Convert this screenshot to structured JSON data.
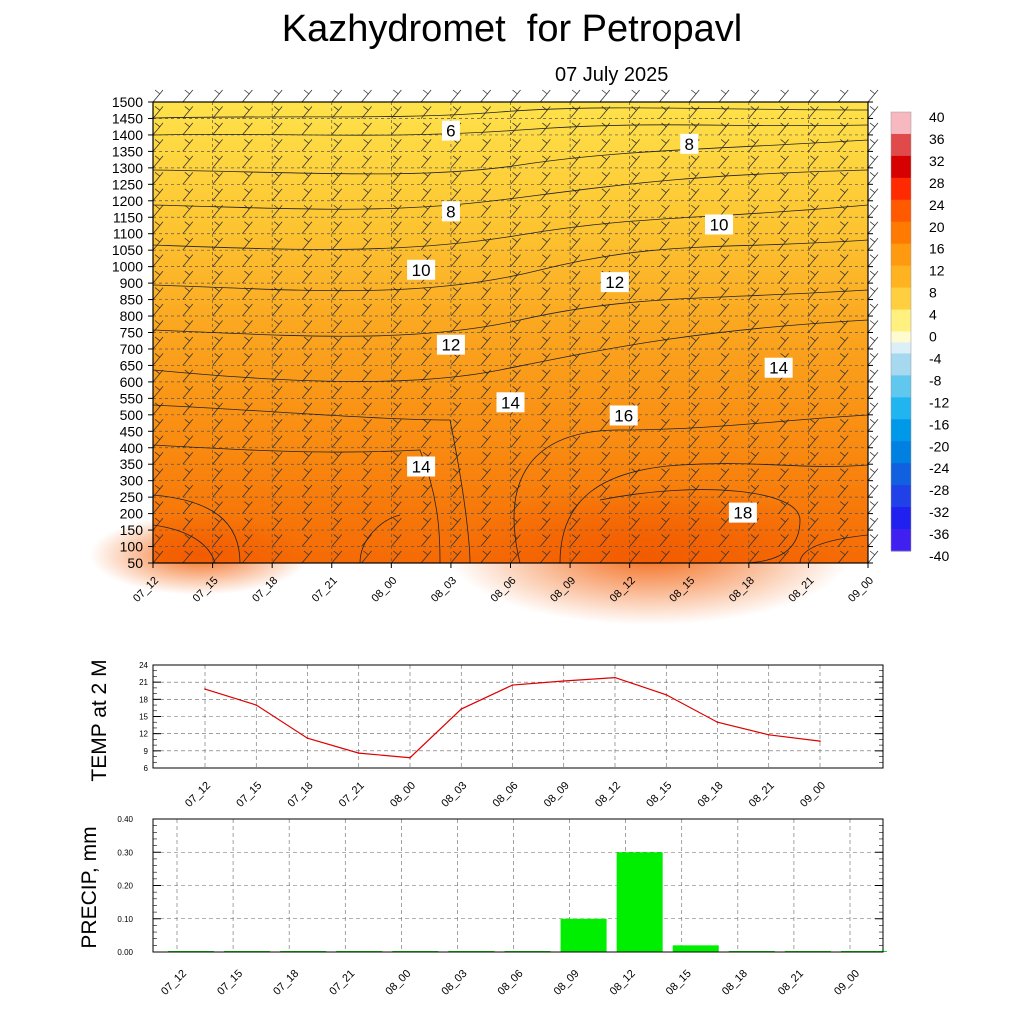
{
  "title": "Kazhydromet  for Petropavl",
  "subtitle": "07 July 2025",
  "cross_section": {
    "y_ticks": [
      "50",
      "100",
      "150",
      "200",
      "250",
      "300",
      "350",
      "400",
      "450",
      "500",
      "550",
      "600",
      "650",
      "700",
      "750",
      "800",
      "850",
      "900",
      "1000",
      "1050",
      "1100",
      "1150",
      "1200",
      "1250",
      "1300",
      "1350",
      "1400",
      "1450",
      "1500"
    ],
    "x_ticks": [
      "07_12",
      "07_15",
      "07_18",
      "07_21",
      "08_00",
      "08_03",
      "08_06",
      "08_09",
      "08_12",
      "08_15",
      "08_18",
      "08_21",
      "09_00"
    ],
    "contour_labels": [
      {
        "text": "6",
        "x_index": 5,
        "level_m": 1410
      },
      {
        "text": "8",
        "x_index": 5,
        "level_m": 1165
      },
      {
        "text": "10",
        "x_index": 4.5,
        "level_m": 975
      },
      {
        "text": "12",
        "x_index": 5,
        "level_m": 710
      },
      {
        "text": "14",
        "x_index": 6,
        "level_m": 535
      },
      {
        "text": "14",
        "x_index": 4.5,
        "level_m": 340
      },
      {
        "text": "8",
        "x_index": 9,
        "level_m": 1370
      },
      {
        "text": "10",
        "x_index": 9.5,
        "level_m": 1125
      },
      {
        "text": "12",
        "x_index": 7.75,
        "level_m": 900
      },
      {
        "text": "16",
        "x_index": 7.9,
        "level_m": 495
      },
      {
        "text": "14",
        "x_index": 10.5,
        "level_m": 640
      },
      {
        "text": "18",
        "x_index": 9.9,
        "level_m": 200
      }
    ],
    "colorbar": {
      "labels": [
        "40",
        "36",
        "32",
        "28",
        "24",
        "20",
        "16",
        "12",
        "8",
        "4",
        "0",
        "-4",
        "-8",
        "-12",
        "-16",
        "-20",
        "-24",
        "-28",
        "-32",
        "-36",
        "-40"
      ]
    }
  },
  "chart_data": [
    {
      "type": "line",
      "ylabel": "TEMP at 2 M",
      "categories": [
        "07_12",
        "07_15",
        "07_18",
        "07_21",
        "08_00",
        "08_03",
        "08_06",
        "08_09",
        "08_12",
        "08_15",
        "08_18",
        "08_21",
        "09_00"
      ],
      "series": [
        {
          "values": [
            19.8,
            17.0,
            11.2,
            8.6,
            7.8,
            16.3,
            20.5,
            21.2,
            21.8,
            18.8,
            14.0,
            11.8,
            10.7
          ]
        }
      ],
      "y_ticks": [
        "24",
        "21",
        "18",
        "15",
        "12",
        "9",
        "6"
      ],
      "ylim": [
        6,
        24
      ],
      "color": "#dd0000"
    },
    {
      "type": "bar",
      "ylabel": "PRECIP, mm",
      "categories": [
        "07_12",
        "07_15",
        "07_18",
        "07_21",
        "08_00",
        "08_03",
        "08_06",
        "08_09",
        "08_12",
        "08_15",
        "08_18",
        "08_21",
        "09_00"
      ],
      "values": [
        0,
        0,
        0,
        0,
        0,
        0,
        0,
        0.1,
        0.3,
        0.02,
        0,
        0,
        0
      ],
      "y_ticks": [
        "0.40",
        "0.30",
        "0.20",
        "0.10",
        "0.00"
      ],
      "ylim": [
        0,
        0.4
      ],
      "color": "#00ee00"
    }
  ]
}
